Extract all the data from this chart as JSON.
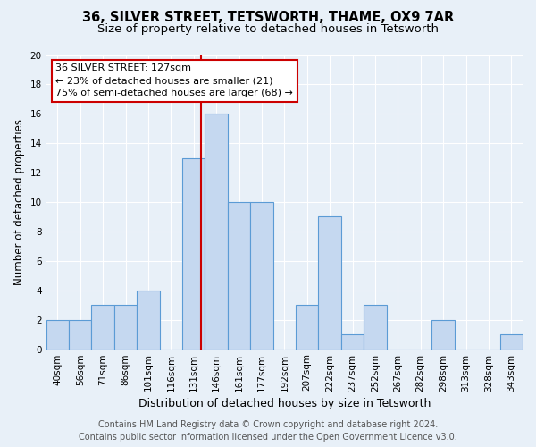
{
  "title": "36, SILVER STREET, TETSWORTH, THAME, OX9 7AR",
  "subtitle": "Size of property relative to detached houses in Tetsworth",
  "xlabel": "Distribution of detached houses by size in Tetsworth",
  "ylabel": "Number of detached properties",
  "categories": [
    "40sqm",
    "56sqm",
    "71sqm",
    "86sqm",
    "101sqm",
    "116sqm",
    "131sqm",
    "146sqm",
    "161sqm",
    "177sqm",
    "192sqm",
    "207sqm",
    "222sqm",
    "237sqm",
    "252sqm",
    "267sqm",
    "282sqm",
    "298sqm",
    "313sqm",
    "328sqm",
    "343sqm"
  ],
  "values": [
    2,
    2,
    3,
    3,
    4,
    0,
    13,
    16,
    10,
    10,
    0,
    3,
    9,
    1,
    3,
    0,
    0,
    2,
    0,
    0,
    1
  ],
  "bar_color": "#c5d8f0",
  "bar_edge_color": "#5b9bd5",
  "bar_edge_width": 0.8,
  "vline_color": "#cc0000",
  "vline_pos": 6.33,
  "ylim": [
    0,
    20
  ],
  "yticks": [
    0,
    2,
    4,
    6,
    8,
    10,
    12,
    14,
    16,
    18,
    20
  ],
  "annotation_title": "36 SILVER STREET: 127sqm",
  "annotation_line1": "← 23% of detached houses are smaller (21)",
  "annotation_line2": "75% of semi-detached houses are larger (68) →",
  "annotation_box_color": "#ffffff",
  "annotation_box_edge": "#cc0000",
  "background_color": "#e8f0f8",
  "plot_background": "#e8f0f8",
  "grid_color": "#ffffff",
  "footer_line1": "Contains HM Land Registry data © Crown copyright and database right 2024.",
  "footer_line2": "Contains public sector information licensed under the Open Government Licence v3.0.",
  "title_fontsize": 10.5,
  "subtitle_fontsize": 9.5,
  "xlabel_fontsize": 9,
  "ylabel_fontsize": 8.5,
  "tick_fontsize": 7.5,
  "annotation_fontsize": 8,
  "footer_fontsize": 7
}
